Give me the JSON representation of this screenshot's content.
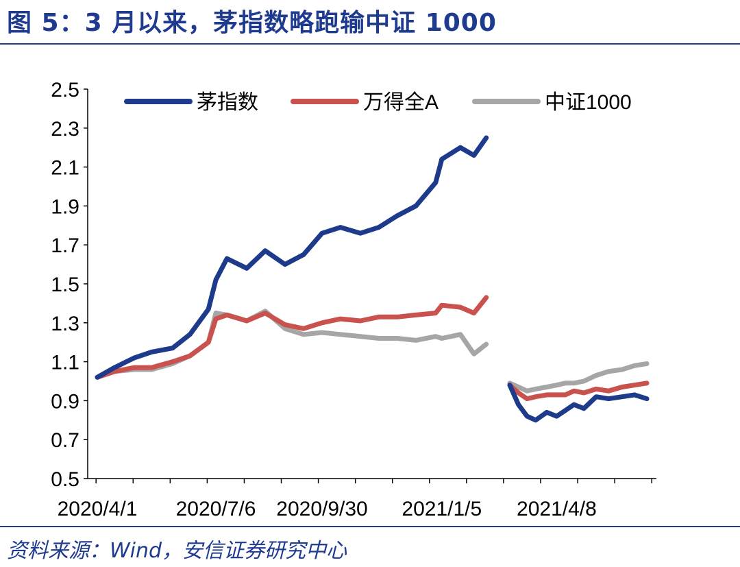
{
  "header": {
    "title": "图 5：3 月以来，茅指数略跑输中证 1000"
  },
  "footer": {
    "source": "资料来源：Wind，安信证券研究中心"
  },
  "colors": {
    "accent": "#1f3b8f",
    "series": [
      "#1e3a8a",
      "#c9524f",
      "#a6a6a6"
    ]
  },
  "chart_data": {
    "type": "line",
    "title": "",
    "xlabel": "",
    "ylabel": "",
    "ylim": [
      0.5,
      2.5
    ],
    "yticks": [
      2.5,
      2.3,
      2.1,
      1.9,
      1.7,
      1.5,
      1.3,
      1.1,
      0.9,
      0.7,
      0.5
    ],
    "xtick_labels": [
      "2020/4/1",
      "2020/7/6",
      "2020/9/30",
      "2021/1/5",
      "2021/4/8"
    ],
    "grid": false,
    "legend": "top",
    "segments": [
      {
        "x": [
          "2020/4/1",
          "2020/4/15",
          "2020/5/1",
          "2020/5/15",
          "2020/6/1",
          "2020/6/15",
          "2020/6/30",
          "2020/7/6",
          "2020/7/15",
          "2020/7/31",
          "2020/8/15",
          "2020/8/31",
          "2020/9/15",
          "2020/9/30",
          "2020/10/15",
          "2020/10/31",
          "2020/11/15",
          "2020/11/30",
          "2020/12/15",
          "2020/12/31",
          "2021/1/5",
          "2021/1/20",
          "2021/1/31",
          "2021/2/10"
        ],
        "series": [
          {
            "name": "茅指数",
            "values": [
              1.02,
              1.07,
              1.12,
              1.15,
              1.17,
              1.24,
              1.37,
              1.52,
              1.63,
              1.58,
              1.67,
              1.6,
              1.65,
              1.76,
              1.79,
              1.76,
              1.79,
              1.85,
              1.9,
              2.02,
              2.14,
              2.2,
              2.16,
              2.25
            ]
          },
          {
            "name": "万得全A",
            "values": [
              1.02,
              1.05,
              1.07,
              1.07,
              1.1,
              1.13,
              1.2,
              1.32,
              1.34,
              1.31,
              1.35,
              1.29,
              1.27,
              1.3,
              1.32,
              1.31,
              1.33,
              1.33,
              1.34,
              1.35,
              1.39,
              1.38,
              1.35,
              1.43
            ]
          },
          {
            "name": "中证1000",
            "values": [
              1.02,
              1.05,
              1.06,
              1.06,
              1.09,
              1.13,
              1.2,
              1.35,
              1.34,
              1.31,
              1.36,
              1.27,
              1.24,
              1.25,
              1.24,
              1.23,
              1.22,
              1.22,
              1.21,
              1.23,
              1.22,
              1.24,
              1.14,
              1.19
            ]
          }
        ]
      },
      {
        "x": [
          "2021/3/1",
          "2021/3/8",
          "2021/3/15",
          "2021/3/22",
          "2021/3/31",
          "2021/4/8",
          "2021/4/15",
          "2021/4/22",
          "2021/4/30",
          "2021/5/10",
          "2021/5/20",
          "2021/5/31",
          "2021/6/10",
          "2021/6/20"
        ],
        "series": [
          {
            "name": "茅指数",
            "values": [
              0.98,
              0.88,
              0.82,
              0.8,
              0.84,
              0.82,
              0.85,
              0.88,
              0.86,
              0.92,
              0.91,
              0.92,
              0.93,
              0.91
            ]
          },
          {
            "name": "万得全A",
            "values": [
              0.98,
              0.94,
              0.91,
              0.92,
              0.93,
              0.93,
              0.93,
              0.95,
              0.94,
              0.96,
              0.95,
              0.97,
              0.98,
              0.99
            ]
          },
          {
            "name": "中证1000",
            "values": [
              0.99,
              0.97,
              0.95,
              0.96,
              0.97,
              0.98,
              0.99,
              0.99,
              1.0,
              1.03,
              1.05,
              1.06,
              1.08,
              1.09
            ]
          }
        ]
      }
    ]
  }
}
